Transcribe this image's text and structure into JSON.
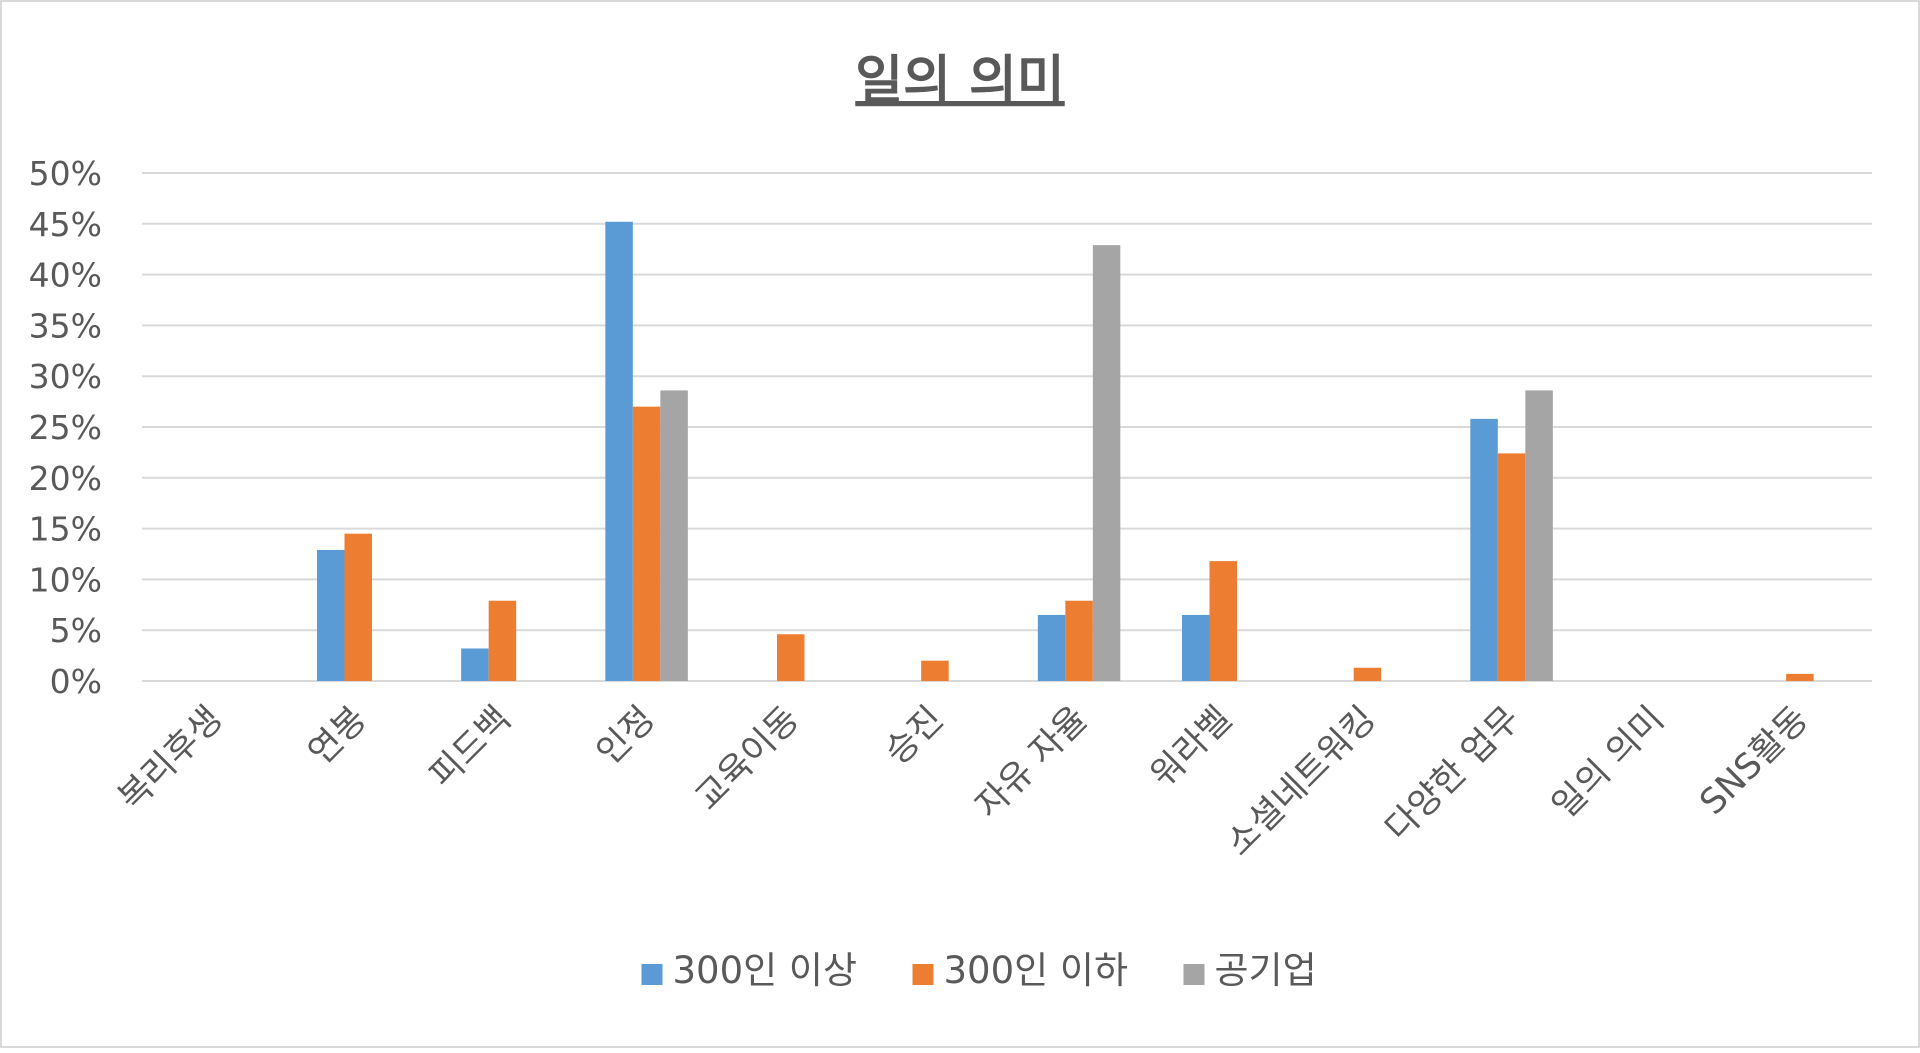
{
  "chart_data": {
    "type": "bar",
    "title": "일의 의미",
    "categories": [
      "복리후생",
      "연봉",
      "피드백",
      "인정",
      "교육이동",
      "승진",
      "자유 자율",
      "워라벨",
      "소셜네트워킹",
      "다양한 업무",
      "일의 의미",
      "SNS활동"
    ],
    "series": [
      {
        "name": "300인 이상",
        "color": "#5b9bd5",
        "values": [
          0,
          12.9,
          3.2,
          45.2,
          0,
          0,
          6.5,
          6.5,
          0,
          25.8,
          0,
          0
        ]
      },
      {
        "name": "300인 이하",
        "color": "#ed7d31",
        "values": [
          0,
          14.5,
          7.9,
          27.0,
          4.6,
          2.0,
          7.9,
          11.8,
          1.3,
          22.4,
          0,
          0.7
        ]
      },
      {
        "name": "공기업",
        "color": "#a5a5a5",
        "values": [
          0,
          0,
          0,
          28.6,
          0,
          0,
          42.9,
          0,
          0,
          28.6,
          0,
          0
        ]
      }
    ],
    "ylim": [
      0,
      50
    ],
    "yticks": [
      "0%",
      "5%",
      "10%",
      "15%",
      "20%",
      "25%",
      "30%",
      "35%",
      "40%",
      "45%",
      "50%"
    ],
    "xlabel": "",
    "ylabel": "",
    "grid": true,
    "legend_position": "bottom"
  }
}
